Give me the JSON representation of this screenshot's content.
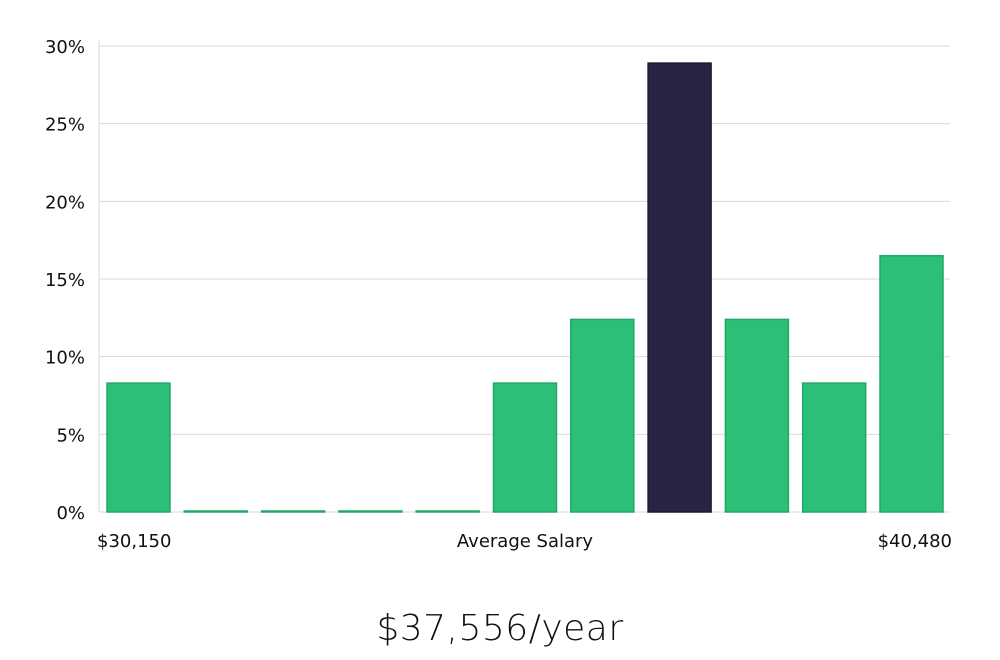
{
  "headline": "$37,556/year",
  "chart_data": {
    "type": "bar",
    "x_labels": {
      "left": "$30,150",
      "center": "Average Salary",
      "right": "$40,480"
    },
    "values": [
      8.3,
      0.0,
      0.0,
      0.0,
      0.0,
      8.3,
      12.4,
      28.9,
      12.4,
      8.3,
      16.5
    ],
    "highlight_index": 7,
    "ylim": [
      0,
      30
    ],
    "yticks": [
      0,
      5,
      10,
      15,
      20,
      25,
      30
    ],
    "ytick_labels": [
      "0%",
      "5%",
      "10%",
      "15%",
      "20%",
      "25%",
      "30%"
    ],
    "grid": true,
    "colors": {
      "bar": "#2bbf78",
      "bar_edge": "#22a866",
      "highlight": "#272444",
      "highlight_edge": "#1c1a36",
      "grid": "#d9d9d9"
    }
  }
}
